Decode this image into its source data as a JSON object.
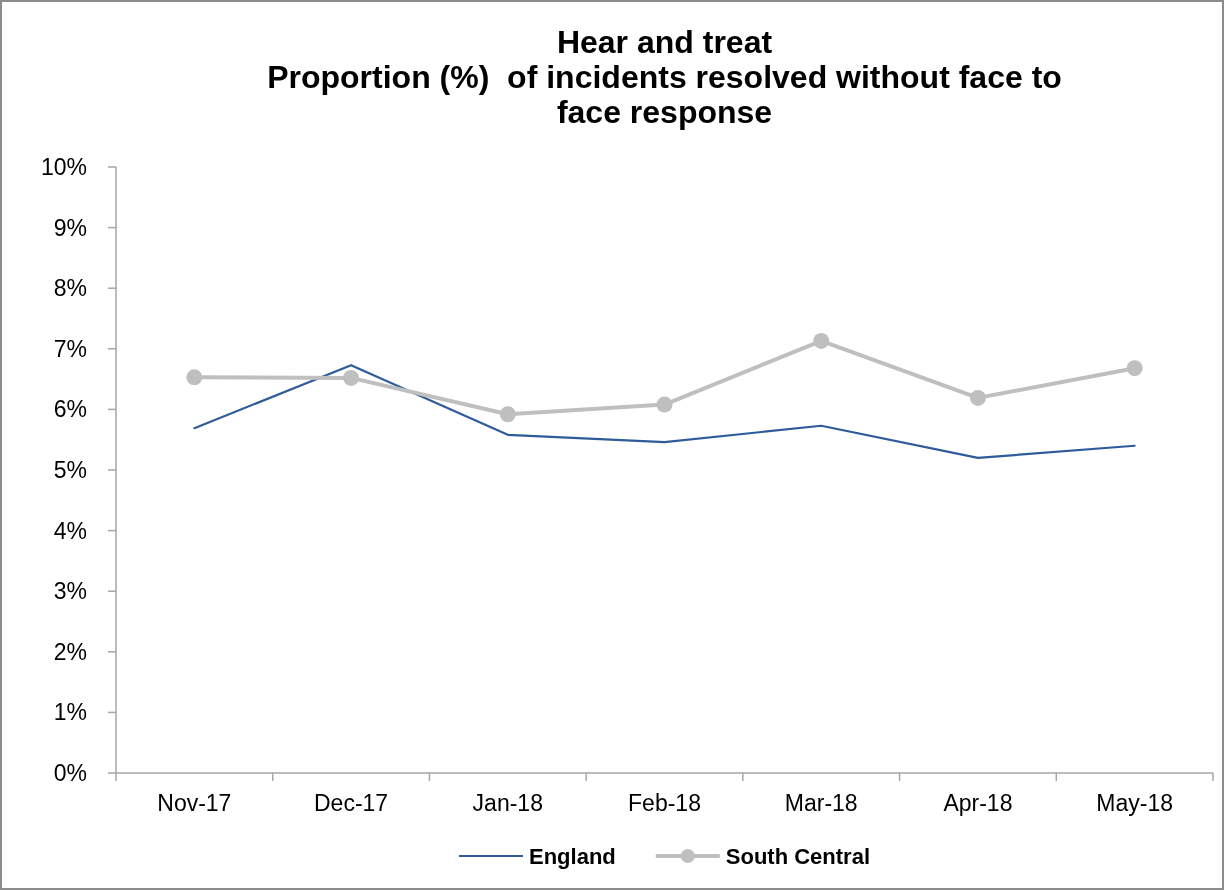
{
  "chart_data": {
    "type": "line",
    "title": "Hear and treat",
    "subtitle": "Proportion (%)  of incidents resolved without face to face response",
    "categories": [
      "Nov-17",
      "Dec-17",
      "Jan-18",
      "Feb-18",
      "Mar-18",
      "Apr-18",
      "May-18"
    ],
    "series": [
      {
        "name": "England",
        "color": "#2f5b9b",
        "marker": "none",
        "values": [
          5.69,
          6.73,
          5.58,
          5.46,
          5.73,
          5.2,
          5.4
        ]
      },
      {
        "name": "South Central",
        "color": "#bfbfbf",
        "marker": "circle",
        "values": [
          6.53,
          6.52,
          5.92,
          6.08,
          7.13,
          6.19,
          6.68
        ]
      }
    ],
    "ylim": [
      0,
      10
    ],
    "yticks": [
      {
        "value": 0,
        "label": "0%"
      },
      {
        "value": 1,
        "label": "1%"
      },
      {
        "value": 2,
        "label": "2%"
      },
      {
        "value": 3,
        "label": "3%"
      },
      {
        "value": 4,
        "label": "4%"
      },
      {
        "value": 5,
        "label": "5%"
      },
      {
        "value": 6,
        "label": "6%"
      },
      {
        "value": 7,
        "label": "7%"
      },
      {
        "value": 8,
        "label": "8%"
      },
      {
        "value": 9,
        "label": "9%"
      },
      {
        "value": 10,
        "label": "10%"
      }
    ],
    "grid": false,
    "legend": "bottom",
    "line_style": "solid"
  }
}
